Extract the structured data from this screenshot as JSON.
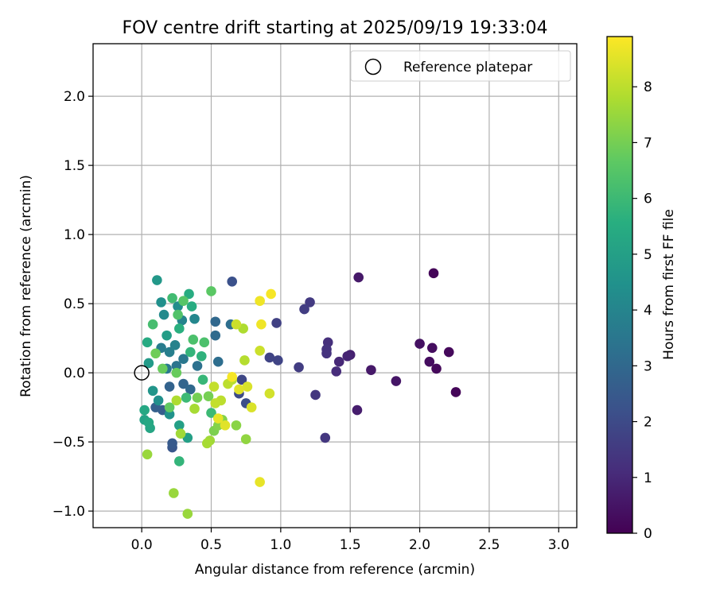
{
  "chart_data": {
    "type": "scatter",
    "title": "FOV centre drift starting at 2025/09/19 19:33:04",
    "xlabel": "Angular distance from reference (arcmin)",
    "ylabel": "Rotation from reference (arcmin)",
    "xlim": [
      -0.35,
      3.13
    ],
    "ylim": [
      -1.12,
      2.38
    ],
    "xticks": [
      0.0,
      0.5,
      1.0,
      1.5,
      2.0,
      2.5,
      3.0
    ],
    "xtick_labels": [
      "0.0",
      "0.5",
      "1.0",
      "1.5",
      "2.0",
      "2.5",
      "3.0"
    ],
    "yticks": [
      -1.0,
      -0.5,
      0.0,
      0.5,
      1.0,
      1.5,
      2.0
    ],
    "ytick_labels": [
      "−1.0",
      "−0.5",
      "0.0",
      "0.5",
      "1.0",
      "1.5",
      "2.0"
    ],
    "grid": true,
    "legend": {
      "position": "top-right",
      "label": "Reference platepar"
    },
    "reference_point": {
      "x": 0.0,
      "y": 0.0
    },
    "colorbar": {
      "label": "Hours from first FF file",
      "min": 0,
      "max": 8.9,
      "ticks": [
        0,
        1,
        2,
        3,
        4,
        5,
        6,
        7,
        8
      ],
      "tick_labels": [
        "0",
        "1",
        "2",
        "3",
        "4",
        "5",
        "6",
        "7",
        "8"
      ],
      "colormap": "viridis"
    },
    "points": [
      {
        "x": 2.1,
        "y": 0.72,
        "h": 0.1
      },
      {
        "x": 2.26,
        "y": -0.14,
        "h": 0.1
      },
      {
        "x": 2.21,
        "y": 0.15,
        "h": 0.2
      },
      {
        "x": 2.12,
        "y": 0.03,
        "h": 0.2
      },
      {
        "x": 2.09,
        "y": 0.18,
        "h": 0.3
      },
      {
        "x": 2.07,
        "y": 0.08,
        "h": 0.3
      },
      {
        "x": 2.0,
        "y": 0.21,
        "h": 0.4
      },
      {
        "x": 1.83,
        "y": -0.06,
        "h": 0.5
      },
      {
        "x": 1.65,
        "y": 0.02,
        "h": 0.6
      },
      {
        "x": 1.56,
        "y": 0.69,
        "h": 0.6
      },
      {
        "x": 1.55,
        "y": -0.27,
        "h": 0.7
      },
      {
        "x": 1.5,
        "y": 0.13,
        "h": 0.8
      },
      {
        "x": 1.48,
        "y": 0.12,
        "h": 0.9
      },
      {
        "x": 1.42,
        "y": 0.08,
        "h": 1.0
      },
      {
        "x": 1.4,
        "y": 0.01,
        "h": 1.1
      },
      {
        "x": 1.34,
        "y": 0.22,
        "h": 1.2
      },
      {
        "x": 1.33,
        "y": 0.17,
        "h": 1.3
      },
      {
        "x": 1.33,
        "y": 0.14,
        "h": 1.3
      },
      {
        "x": 1.32,
        "y": -0.47,
        "h": 1.4
      },
      {
        "x": 1.25,
        "y": -0.16,
        "h": 1.4
      },
      {
        "x": 1.21,
        "y": 0.51,
        "h": 1.5
      },
      {
        "x": 1.17,
        "y": 0.46,
        "h": 1.6
      },
      {
        "x": 1.13,
        "y": 0.04,
        "h": 1.6
      },
      {
        "x": 0.97,
        "y": 0.36,
        "h": 1.7
      },
      {
        "x": 0.98,
        "y": 0.09,
        "h": 1.8
      },
      {
        "x": 0.92,
        "y": 0.11,
        "h": 1.8
      },
      {
        "x": 0.72,
        "y": -0.05,
        "h": 1.9
      },
      {
        "x": 0.7,
        "y": -0.15,
        "h": 2.0
      },
      {
        "x": 0.75,
        "y": -0.22,
        "h": 2.1
      },
      {
        "x": 0.65,
        "y": 0.66,
        "h": 2.2
      },
      {
        "x": 0.22,
        "y": -0.54,
        "h": 2.4
      },
      {
        "x": 0.22,
        "y": -0.51,
        "h": 2.5
      },
      {
        "x": 0.15,
        "y": -0.27,
        "h": 2.6
      },
      {
        "x": 0.1,
        "y": -0.25,
        "h": 2.7
      },
      {
        "x": 0.2,
        "y": -0.1,
        "h": 2.8
      },
      {
        "x": 0.3,
        "y": -0.08,
        "h": 2.9
      },
      {
        "x": 0.35,
        "y": -0.12,
        "h": 3.0
      },
      {
        "x": 0.53,
        "y": 0.37,
        "h": 3.0
      },
      {
        "x": 0.53,
        "y": 0.27,
        "h": 3.1
      },
      {
        "x": 0.64,
        "y": 0.35,
        "h": 3.2
      },
      {
        "x": 0.55,
        "y": 0.08,
        "h": 3.2
      },
      {
        "x": 0.4,
        "y": 0.05,
        "h": 3.3
      },
      {
        "x": 0.25,
        "y": 0.05,
        "h": 3.4
      },
      {
        "x": 0.3,
        "y": 0.1,
        "h": 3.5
      },
      {
        "x": 0.18,
        "y": 0.03,
        "h": 3.6
      },
      {
        "x": 0.14,
        "y": 0.18,
        "h": 3.7
      },
      {
        "x": 0.2,
        "y": 0.15,
        "h": 3.8
      },
      {
        "x": 0.24,
        "y": 0.2,
        "h": 3.9
      },
      {
        "x": 0.29,
        "y": 0.38,
        "h": 4.0
      },
      {
        "x": 0.38,
        "y": 0.39,
        "h": 4.1
      },
      {
        "x": 0.16,
        "y": 0.42,
        "h": 4.2
      },
      {
        "x": 0.26,
        "y": 0.48,
        "h": 4.3
      },
      {
        "x": 0.14,
        "y": 0.51,
        "h": 4.4
      },
      {
        "x": 0.12,
        "y": -0.2,
        "h": 4.4
      },
      {
        "x": 0.2,
        "y": -0.3,
        "h": 4.5
      },
      {
        "x": 0.08,
        "y": -0.13,
        "h": 4.6
      },
      {
        "x": 0.11,
        "y": 0.67,
        "h": 4.7
      },
      {
        "x": 0.05,
        "y": 0.07,
        "h": 4.8
      },
      {
        "x": 0.18,
        "y": 0.27,
        "h": 4.9
      },
      {
        "x": 0.33,
        "y": -0.47,
        "h": 5.0
      },
      {
        "x": 0.27,
        "y": -0.38,
        "h": 5.0
      },
      {
        "x": 0.02,
        "y": -0.34,
        "h": 5.1
      },
      {
        "x": 0.06,
        "y": -0.4,
        "h": 5.2
      },
      {
        "x": 0.02,
        "y": -0.27,
        "h": 5.3
      },
      {
        "x": 0.05,
        "y": -0.36,
        "h": 5.3
      },
      {
        "x": 0.04,
        "y": 0.22,
        "h": 5.4
      },
      {
        "x": 0.34,
        "y": 0.57,
        "h": 5.5
      },
      {
        "x": 0.36,
        "y": 0.48,
        "h": 5.5
      },
      {
        "x": 0.27,
        "y": 0.32,
        "h": 5.6
      },
      {
        "x": 0.43,
        "y": 0.12,
        "h": 5.7
      },
      {
        "x": 0.35,
        "y": 0.15,
        "h": 5.8
      },
      {
        "x": 0.27,
        "y": -0.64,
        "h": 5.8
      },
      {
        "x": 0.44,
        "y": -0.05,
        "h": 5.9
      },
      {
        "x": 0.32,
        "y": -0.18,
        "h": 6.0
      },
      {
        "x": 0.5,
        "y": -0.29,
        "h": 6.0
      },
      {
        "x": 0.22,
        "y": 0.54,
        "h": 6.1
      },
      {
        "x": 0.08,
        "y": 0.35,
        "h": 6.2
      },
      {
        "x": 0.37,
        "y": 0.24,
        "h": 6.3
      },
      {
        "x": 0.45,
        "y": 0.22,
        "h": 6.3
      },
      {
        "x": 0.26,
        "y": 0.42,
        "h": 6.4
      },
      {
        "x": 0.3,
        "y": 0.52,
        "h": 6.5
      },
      {
        "x": 0.5,
        "y": 0.59,
        "h": 6.6
      },
      {
        "x": 0.2,
        "y": -0.25,
        "h": 6.7
      },
      {
        "x": 0.15,
        "y": 0.03,
        "h": 6.8
      },
      {
        "x": 0.25,
        "y": 0.0,
        "h": 6.8
      },
      {
        "x": 0.1,
        "y": 0.14,
        "h": 6.9
      },
      {
        "x": 0.4,
        "y": -0.18,
        "h": 7.0
      },
      {
        "x": 0.48,
        "y": -0.17,
        "h": 7.0
      },
      {
        "x": 0.52,
        "y": -0.42,
        "h": 7.1
      },
      {
        "x": 0.55,
        "y": -0.38,
        "h": 7.2
      },
      {
        "x": 0.58,
        "y": -0.34,
        "h": 7.2
      },
      {
        "x": 0.68,
        "y": -0.38,
        "h": 7.3
      },
      {
        "x": 0.75,
        "y": -0.48,
        "h": 7.4
      },
      {
        "x": 0.33,
        "y": -1.02,
        "h": 7.5
      },
      {
        "x": 0.23,
        "y": -0.87,
        "h": 7.5
      },
      {
        "x": 0.04,
        "y": -0.59,
        "h": 7.5
      },
      {
        "x": 0.28,
        "y": -0.44,
        "h": 7.6
      },
      {
        "x": 0.49,
        "y": -0.49,
        "h": 7.6
      },
      {
        "x": 0.47,
        "y": -0.51,
        "h": 7.7
      },
      {
        "x": 0.38,
        "y": -0.26,
        "h": 7.7
      },
      {
        "x": 0.25,
        "y": -0.2,
        "h": 7.8
      },
      {
        "x": 0.73,
        "y": 0.32,
        "h": 7.8
      },
      {
        "x": 0.74,
        "y": 0.09,
        "h": 7.9
      },
      {
        "x": 0.65,
        "y": -0.05,
        "h": 7.9
      },
      {
        "x": 0.62,
        "y": -0.08,
        "h": 8.0
      },
      {
        "x": 0.57,
        "y": -0.2,
        "h": 8.0
      },
      {
        "x": 0.53,
        "y": -0.22,
        "h": 8.1
      },
      {
        "x": 0.52,
        "y": -0.1,
        "h": 8.1
      },
      {
        "x": 0.68,
        "y": 0.35,
        "h": 8.2
      },
      {
        "x": 0.85,
        "y": 0.16,
        "h": 8.2
      },
      {
        "x": 0.92,
        "y": -0.15,
        "h": 8.3
      },
      {
        "x": 0.79,
        "y": -0.25,
        "h": 8.4
      },
      {
        "x": 0.76,
        "y": -0.1,
        "h": 8.4
      },
      {
        "x": 0.7,
        "y": -0.12,
        "h": 8.5
      },
      {
        "x": 0.6,
        "y": -0.38,
        "h": 8.5
      },
      {
        "x": 0.55,
        "y": -0.33,
        "h": 8.6
      },
      {
        "x": 0.85,
        "y": -0.79,
        "h": 8.6
      },
      {
        "x": 0.86,
        "y": 0.35,
        "h": 8.7
      },
      {
        "x": 0.85,
        "y": 0.52,
        "h": 8.7
      },
      {
        "x": 0.93,
        "y": 0.57,
        "h": 8.8
      },
      {
        "x": 0.65,
        "y": -0.03,
        "h": 8.8
      }
    ]
  }
}
